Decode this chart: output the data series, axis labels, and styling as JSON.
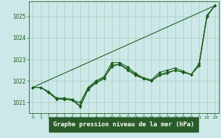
{
  "bg_color": "#cce8e8",
  "grid_color": "#aaccbb",
  "line_color": "#1a5c1a",
  "xlabel": "Graphe pression niveau de la mer (hPa)",
  "ylim": [
    1020.5,
    1025.7
  ],
  "xlim": [
    -0.5,
    23.5
  ],
  "yticks": [
    1021,
    1022,
    1023,
    1024,
    1025
  ],
  "xticks": [
    0,
    1,
    2,
    3,
    4,
    5,
    6,
    7,
    8,
    9,
    10,
    11,
    12,
    13,
    14,
    15,
    16,
    17,
    18,
    19,
    20,
    21,
    22,
    23
  ],
  "lines": [
    {
      "x": [
        0,
        1,
        2,
        3,
        4,
        5,
        6,
        7,
        8,
        9,
        10,
        11,
        12,
        13,
        14,
        15,
        16,
        17,
        18,
        19,
        20,
        21,
        22,
        23
      ],
      "y": [
        1021.7,
        1021.7,
        1021.5,
        1021.2,
        1021.15,
        1021.1,
        1021.0,
        1021.7,
        1022.0,
        1022.2,
        1022.85,
        1022.85,
        1022.65,
        1022.35,
        1022.15,
        1022.05,
        1022.4,
        1022.5,
        1022.6,
        1022.45,
        1022.3,
        1022.8,
        1025.05,
        1025.5
      ]
    },
    {
      "x": [
        0,
        23
      ],
      "y": [
        1021.7,
        1025.5
      ]
    },
    {
      "x": [
        0,
        1,
        2,
        3,
        4,
        5,
        6,
        7,
        8,
        9,
        10,
        11,
        12,
        13,
        14,
        15,
        16,
        17,
        18,
        19,
        20,
        21,
        22,
        23
      ],
      "y": [
        1021.7,
        1021.7,
        1021.45,
        1021.15,
        1021.15,
        1021.1,
        1020.8,
        1021.6,
        1021.9,
        1022.1,
        1022.75,
        1022.75,
        1022.5,
        1022.25,
        1022.1,
        1022.0,
        1022.25,
        1022.35,
        1022.5,
        1022.4,
        1022.3,
        1022.7,
        1025.0,
        1025.5
      ]
    },
    {
      "x": [
        0,
        1,
        2,
        3,
        4,
        5,
        6,
        7,
        8,
        9,
        10,
        11,
        12,
        13,
        14,
        15,
        16,
        17,
        18,
        19,
        20,
        21,
        22,
        23
      ],
      "y": [
        1021.7,
        1021.7,
        1021.5,
        1021.2,
        1021.2,
        1021.15,
        1020.85,
        1021.65,
        1021.95,
        1022.15,
        1022.65,
        1022.8,
        1022.55,
        1022.3,
        1022.1,
        1022.0,
        1022.3,
        1022.4,
        1022.5,
        1022.4,
        1022.3,
        1022.7,
        1025.0,
        1025.5
      ]
    }
  ]
}
